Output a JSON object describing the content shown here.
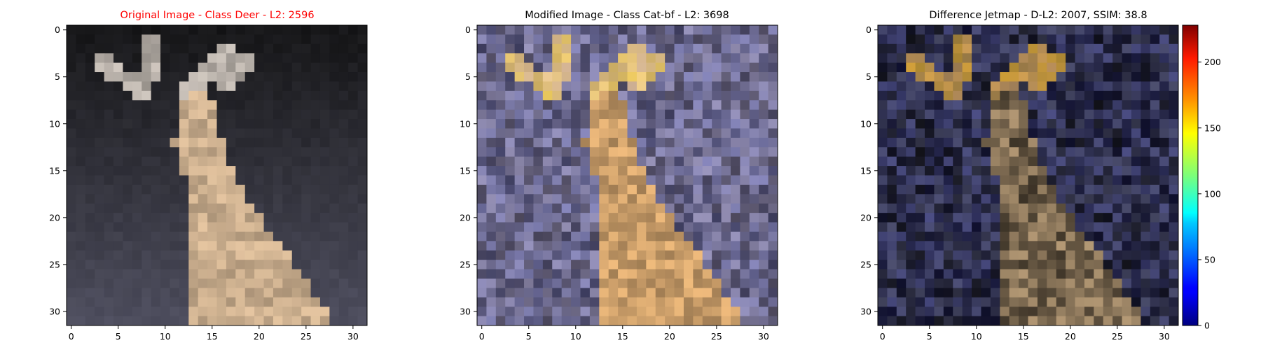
{
  "chart_data": [
    {
      "type": "heatmap",
      "title": "Original Image - Class Deer - L2: 2596",
      "title_color": "#ff0000",
      "image_size": [
        32,
        32
      ],
      "content": "low-res photo of a deer with two antlers on a dark background",
      "xlim": [
        0,
        31
      ],
      "ylim": [
        31,
        0
      ],
      "xticks": [
        "0",
        "5",
        "10",
        "15",
        "20",
        "25",
        "30"
      ],
      "yticks": [
        "0",
        "5",
        "10",
        "15",
        "20",
        "25",
        "30"
      ]
    },
    {
      "type": "heatmap",
      "title": "Modified Image - Class Cat-bf - L2: 3698",
      "title_color": "#000000",
      "image_size": [
        32,
        32
      ],
      "content": "adversarially modified deer photo with bluish-grey noisy background",
      "xlim": [
        0,
        31
      ],
      "ylim": [
        31,
        0
      ],
      "xticks": [
        "0",
        "5",
        "10",
        "15",
        "20",
        "25",
        "30"
      ],
      "yticks": [
        "0",
        "5",
        "10",
        "15",
        "20",
        "25",
        "30"
      ]
    },
    {
      "type": "heatmap",
      "title": "Difference Jetmap - D-L2: 2007, SSIM: 38.8",
      "title_color": "#000000",
      "image_size": [
        32,
        32
      ],
      "content": "difference image between original and modified, dark with bluish noise",
      "xlim": [
        0,
        31
      ],
      "ylim": [
        31,
        0
      ],
      "xticks": [
        "0",
        "5",
        "10",
        "15",
        "20",
        "25",
        "30"
      ],
      "yticks": [
        "0",
        "5",
        "10",
        "15",
        "20",
        "25",
        "30"
      ],
      "colorbar": {
        "colormap": "jet",
        "range": [
          0,
          228
        ],
        "ticks": [
          "0",
          "50",
          "100",
          "150",
          "200"
        ]
      }
    }
  ]
}
